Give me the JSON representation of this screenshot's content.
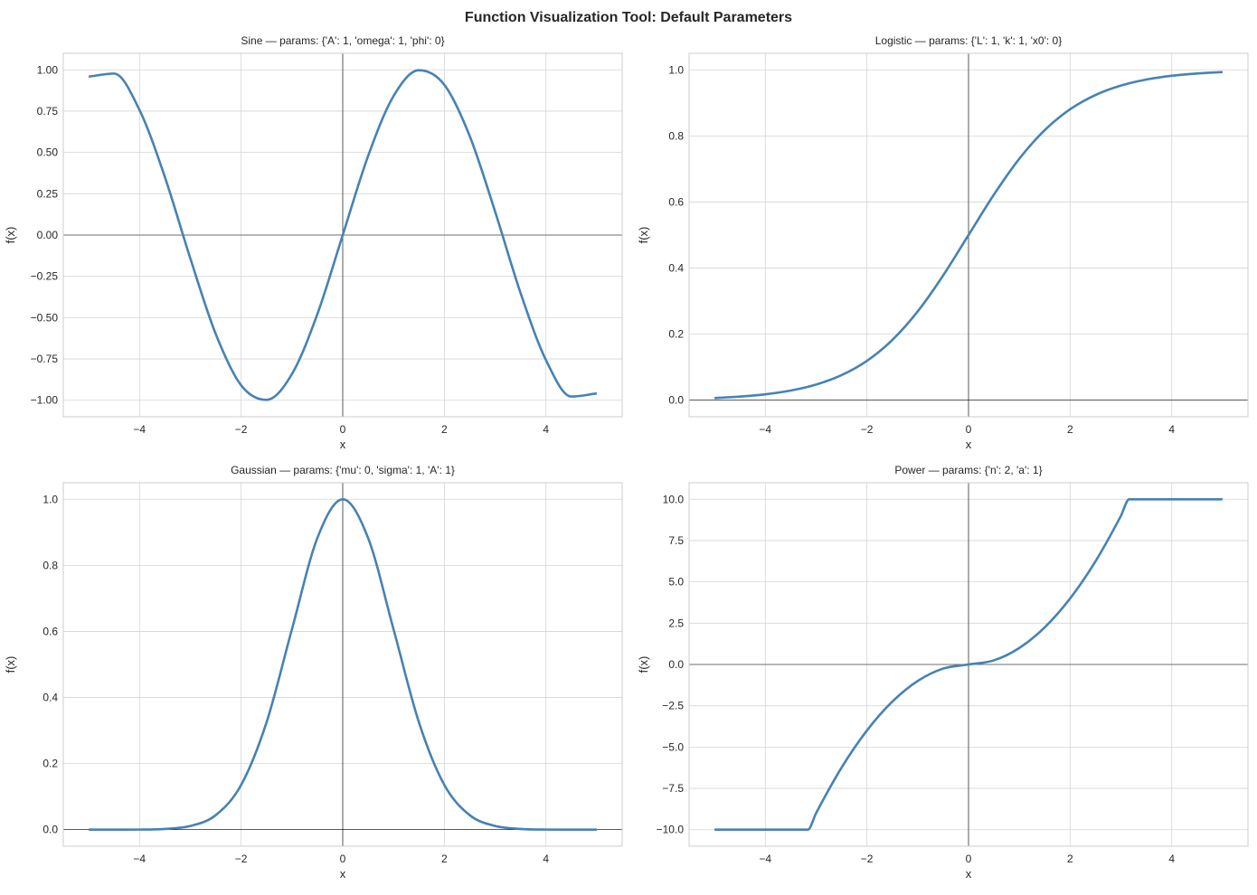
{
  "figure": {
    "title": "Function Visualization Tool: Default Parameters"
  },
  "style": {
    "line_color": "#4682b4",
    "grid_color": "#d5d5d5",
    "spine_color": "#cccccc",
    "zero_line_color": "#000000"
  },
  "chart_data": [
    {
      "type": "line",
      "title": "Sine — params: {'A': 1, 'omega': 1, 'phi': 0}",
      "xlabel": "x",
      "ylabel": "f(x)",
      "xlim": [
        -5.5,
        5.5
      ],
      "ylim": [
        -1.1,
        1.1
      ],
      "xticks": [
        -4,
        -2,
        0,
        2,
        4
      ],
      "xtick_labels": [
        "−4",
        "−2",
        "0",
        "2",
        "4"
      ],
      "yticks": [
        -1,
        -0.75,
        -0.5,
        -0.25,
        0,
        0.25,
        0.5,
        0.75,
        1
      ],
      "ytick_labels": [
        "−1.00",
        "−0.75",
        "−0.50",
        "−0.25",
        "0.00",
        "0.25",
        "0.50",
        "0.75",
        "1.00"
      ],
      "grid": true,
      "x": [
        -5,
        -4.5,
        -4,
        -3.5,
        -3,
        -2.5,
        -2,
        -1.5,
        -1,
        -0.5,
        0,
        0.5,
        1,
        1.5,
        2,
        2.5,
        3,
        3.5,
        4,
        4.5,
        5
      ],
      "y": [
        0.9589,
        0.9775,
        0.7568,
        0.3508,
        -0.1411,
        -0.5985,
        -0.9093,
        -0.9975,
        -0.8415,
        -0.4794,
        0,
        0.4794,
        0.8415,
        0.9975,
        0.9093,
        0.5985,
        0.1411,
        -0.3508,
        -0.7568,
        -0.9775,
        -0.9589
      ]
    },
    {
      "type": "line",
      "title": "Logistic — params: {'L': 1, 'k': 1, 'x0': 0}",
      "xlabel": "x",
      "ylabel": "f(x)",
      "xlim": [
        -5.5,
        5.5
      ],
      "ylim": [
        -0.05,
        1.05
      ],
      "xticks": [
        -4,
        -2,
        0,
        2,
        4
      ],
      "xtick_labels": [
        "−4",
        "−2",
        "0",
        "2",
        "4"
      ],
      "yticks": [
        0,
        0.2,
        0.4,
        0.6,
        0.8,
        1.0
      ],
      "ytick_labels": [
        "0.0",
        "0.2",
        "0.4",
        "0.6",
        "0.8",
        "1.0"
      ],
      "grid": true,
      "x": [
        -5,
        -4.5,
        -4,
        -3.5,
        -3,
        -2.5,
        -2,
        -1.5,
        -1,
        -0.5,
        0,
        0.5,
        1,
        1.5,
        2,
        2.5,
        3,
        3.5,
        4,
        4.5,
        5
      ],
      "y": [
        0.0067,
        0.011,
        0.018,
        0.0293,
        0.0474,
        0.0759,
        0.1192,
        0.1824,
        0.2689,
        0.3775,
        0.5,
        0.6225,
        0.7311,
        0.8176,
        0.8808,
        0.9241,
        0.9526,
        0.9707,
        0.982,
        0.989,
        0.9933
      ]
    },
    {
      "type": "line",
      "title": "Gaussian — params: {'mu': 0, 'sigma': 1, 'A': 1}",
      "xlabel": "x",
      "ylabel": "f(x)",
      "xlim": [
        -5.5,
        5.5
      ],
      "ylim": [
        -0.05,
        1.05
      ],
      "xticks": [
        -4,
        -2,
        0,
        2,
        4
      ],
      "xtick_labels": [
        "−4",
        "−2",
        "0",
        "2",
        "4"
      ],
      "yticks": [
        0,
        0.2,
        0.4,
        0.6,
        0.8,
        1.0
      ],
      "ytick_labels": [
        "0.0",
        "0.2",
        "0.4",
        "0.6",
        "0.8",
        "1.0"
      ],
      "grid": true,
      "x": [
        -5,
        -4.5,
        -4,
        -3.5,
        -3,
        -2.5,
        -2,
        -1.5,
        -1,
        -0.5,
        0,
        0.5,
        1,
        1.5,
        2,
        2.5,
        3,
        3.5,
        4,
        4.5,
        5
      ],
      "y": [
        0,
        4e-05,
        0.0003,
        0.0022,
        0.0111,
        0.0439,
        0.1353,
        0.3247,
        0.6065,
        0.8825,
        1,
        0.8825,
        0.6065,
        0.3247,
        0.1353,
        0.0439,
        0.0111,
        0.0022,
        0.0003,
        4e-05,
        0
      ]
    },
    {
      "type": "line",
      "title": "Power — params: {'n': 2, 'a': 1}",
      "xlabel": "x",
      "ylabel": "f(x)",
      "xlim": [
        -5.5,
        5.5
      ],
      "ylim": [
        -11,
        11
      ],
      "xticks": [
        -4,
        -2,
        0,
        2,
        4
      ],
      "xtick_labels": [
        "−4",
        "−2",
        "0",
        "2",
        "4"
      ],
      "yticks": [
        -10,
        -7.5,
        -5,
        -2.5,
        0,
        2.5,
        5,
        7.5,
        10
      ],
      "ytick_labels": [
        "−10.0",
        "−7.5",
        "−5.0",
        "−2.5",
        "0.0",
        "2.5",
        "5.0",
        "7.5",
        "10.0"
      ],
      "grid": true,
      "x": [
        -5,
        -4,
        -3.162,
        -3,
        -2.5,
        -2,
        -1.5,
        -1,
        -0.5,
        0,
        0.5,
        1,
        1.5,
        2,
        2.5,
        3,
        3.162,
        4,
        5
      ],
      "y": [
        -10,
        -10,
        -10,
        -9,
        -6.25,
        -4,
        -2.25,
        -1,
        -0.25,
        0,
        0.25,
        1,
        2.25,
        4,
        6.25,
        9,
        10,
        10,
        10
      ]
    }
  ]
}
